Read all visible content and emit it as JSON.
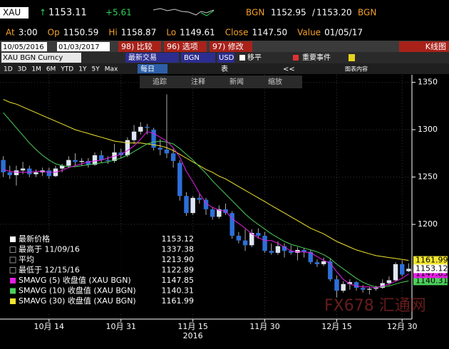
{
  "header": {
    "ticker": "XAU",
    "arrow": "↑",
    "last": "1153.11",
    "change": "+5.61",
    "bid_src": "BGN",
    "bid": "1152.95",
    "sep": "/",
    "ask": "1153.20",
    "ask_src": "BGN"
  },
  "quote": [
    {
      "label": "At",
      "value": "3:00"
    },
    {
      "label": "Op",
      "value": "1150.59"
    },
    {
      "label": "Hi",
      "value": "1158.87"
    },
    {
      "label": "Lo",
      "value": "1149.61"
    },
    {
      "label": "Close",
      "value": "1147.50"
    },
    {
      "label": "Value",
      "value": "01/05/17"
    }
  ],
  "toolbar": {
    "start": "10/05/2016",
    "end": "01/03/2017",
    "buttons": [
      "98) 比较",
      "96) 选项",
      "97) 修改"
    ],
    "view": "K线图"
  },
  "security": {
    "name": "XAU BGN Curncy",
    "field": "最新交易",
    "source": "BGN",
    "currency": "USD",
    "checks": [
      "移平",
      "重要事件"
    ]
  },
  "ranges": [
    "1D",
    "3D",
    "1M",
    "6M",
    "YTD",
    "1Y",
    "5Y",
    "Max"
  ],
  "period": "每日",
  "table": "表",
  "collapse": "<<",
  "content": "图表内容",
  "tools": [
    "追踪",
    "注释",
    "新闻",
    "缩放"
  ],
  "watermark": "FX678 汇通网",
  "chart_data": {
    "type": "candlestick",
    "open": [
      1268,
      1255,
      1252,
      1257,
      1259,
      1253,
      1255,
      1257,
      1251,
      1259,
      1262,
      1268,
      1266,
      1267,
      1263,
      1273,
      1268,
      1267,
      1276,
      1273,
      1289,
      1298,
      1303,
      1300,
      1281,
      1279,
      1275,
      1265,
      1230,
      1212,
      1228,
      1226,
      1216,
      1208,
      1216,
      1212,
      1188,
      1183,
      1178,
      1191,
      1188,
      1172,
      1170,
      1177,
      1172,
      1170,
      1173,
      1171,
      1160,
      1158,
      1161,
      1142,
      1130,
      1137,
      1139,
      1133,
      1131,
      1132,
      1133,
      1138,
      1141,
      1158,
      1150.59
    ],
    "high": [
      1272,
      1262,
      1262,
      1266,
      1262,
      1258,
      1260,
      1260,
      1262,
      1264,
      1272,
      1275,
      1270,
      1270,
      1276,
      1278,
      1272,
      1285,
      1280,
      1292,
      1305,
      1308,
      1306,
      1302,
      1290,
      1337.38,
      1280,
      1268,
      1234,
      1230,
      1232,
      1228,
      1218,
      1220,
      1222,
      1214,
      1192,
      1195,
      1195,
      1196,
      1192,
      1180,
      1182,
      1180,
      1178,
      1176,
      1175,
      1173,
      1163,
      1165,
      1164,
      1146,
      1140,
      1142,
      1140,
      1136,
      1134,
      1135,
      1142,
      1145,
      1160,
      1162,
      1158.87
    ],
    "low": [
      1250,
      1248,
      1241,
      1253,
      1250,
      1250,
      1251,
      1248,
      1250,
      1255,
      1260,
      1262,
      1262,
      1260,
      1262,
      1265,
      1264,
      1265,
      1270,
      1271,
      1285,
      1295,
      1295,
      1278,
      1273,
      1270,
      1260,
      1225,
      1209,
      1210,
      1222,
      1210,
      1205,
      1206,
      1210,
      1185,
      1180,
      1172,
      1176,
      1185,
      1170,
      1168,
      1168,
      1165,
      1168,
      1162,
      1165,
      1158,
      1155,
      1156,
      1140,
      1122.89,
      1128,
      1131,
      1130,
      1128,
      1126,
      1130,
      1132,
      1136,
      1140,
      1145,
      1149.61
    ],
    "close": [
      1255,
      1252,
      1257,
      1259,
      1253,
      1255,
      1257,
      1251,
      1259,
      1262,
      1268,
      1266,
      1267,
      1263,
      1273,
      1268,
      1267,
      1276,
      1273,
      1289,
      1298,
      1303,
      1302,
      1281,
      1279,
      1275,
      1267,
      1230,
      1212,
      1228,
      1226,
      1216,
      1208,
      1216,
      1212,
      1188,
      1183,
      1178,
      1191,
      1188,
      1172,
      1170,
      1177,
      1172,
      1170,
      1173,
      1171,
      1160,
      1158,
      1161,
      1142,
      1130,
      1137,
      1139,
      1133,
      1131,
      1132,
      1133,
      1138,
      1141,
      1158,
      1147,
      1153.12
    ],
    "up_color": "#dfe6f2",
    "down_color": "#2d6fd8",
    "series": [
      {
        "name": "SMAVG (30) 收盘值 (XAU BGN)",
        "color": "#f2e531",
        "values": [
          1332,
          1329,
          1327,
          1324,
          1321,
          1318,
          1315,
          1312,
          1309,
          1306,
          1303,
          1300,
          1298,
          1296,
          1294,
          1292,
          1290,
          1288,
          1287,
          1286,
          1286,
          1286,
          1285,
          1284,
          1283,
          1281,
          1278,
          1274,
          1270,
          1266,
          1262,
          1258,
          1255,
          1251,
          1248,
          1244,
          1240,
          1236,
          1232,
          1228,
          1224,
          1220,
          1216,
          1212,
          1208,
          1204,
          1200,
          1196,
          1193,
          1190,
          1186,
          1182,
          1179,
          1176,
          1173,
          1171,
          1169,
          1167,
          1166,
          1165,
          1164,
          1163,
          1161.99
        ]
      },
      {
        "name": "SMAVG (10) 收盘值 (XAU BGN)",
        "color": "#4ccf5a",
        "values": [
          1318,
          1310,
          1302,
          1294,
          1286,
          1279,
          1273,
          1268,
          1264,
          1262,
          1261,
          1261,
          1262,
          1263,
          1264,
          1265,
          1266,
          1268,
          1270,
          1273,
          1277,
          1281,
          1285,
          1287,
          1288,
          1287,
          1285,
          1280,
          1274,
          1268,
          1261,
          1254,
          1246,
          1239,
          1232,
          1225,
          1218,
          1211,
          1205,
          1200,
          1195,
          1190,
          1186,
          1182,
          1179,
          1177,
          1175,
          1173,
          1171,
          1168,
          1164,
          1158,
          1153,
          1148,
          1143,
          1139,
          1136,
          1134,
          1134,
          1135,
          1137,
          1139,
          1140.31
        ]
      },
      {
        "name": "SMAVG (5) 收盘值 (XAU BGN)",
        "color": "#e61ee6",
        "values": [
          1258,
          1256,
          1255,
          1255,
          1255,
          1256,
          1256,
          1255,
          1255,
          1257,
          1260,
          1262,
          1264,
          1266,
          1267,
          1268,
          1270,
          1272,
          1274,
          1278,
          1283,
          1290,
          1298,
          1296,
          1292,
          1288,
          1281,
          1271,
          1256,
          1245,
          1233,
          1222,
          1218,
          1215,
          1214,
          1206,
          1201,
          1196,
          1190,
          1186,
          1183,
          1183,
          1180,
          1176,
          1172,
          1171,
          1171,
          1170,
          1166,
          1162,
          1159,
          1150,
          1142,
          1137,
          1135,
          1134,
          1134,
          1133,
          1135,
          1137,
          1140,
          1143,
          1147.85
        ]
      }
    ],
    "stats": [
      {
        "label": "最新价格",
        "value": 1153.12,
        "color": "#ffffff"
      },
      {
        "label": "最高于 11/09/16",
        "value": 1337.38
      },
      {
        "label": "平均",
        "value": 1213.9,
        "value_label": "1213.90"
      },
      {
        "label": "最低于 12/15/16",
        "value": 1122.89
      }
    ],
    "legend_order": [
      2,
      1,
      0
    ],
    "xticks": [
      {
        "value": 7,
        "label": "10月 14"
      },
      {
        "value": 18,
        "label": "10月 31"
      },
      {
        "value": 29,
        "label": "11月 15"
      },
      {
        "value": 40,
        "label": "11月 30"
      },
      {
        "value": 51,
        "label": "12月 15"
      },
      {
        "value": 61,
        "label": "12月 30"
      }
    ],
    "year": "2016",
    "ylim": [
      1100,
      1358
    ],
    "yticks": [
      1200,
      1250,
      1300,
      1350
    ],
    "grid": true
  }
}
